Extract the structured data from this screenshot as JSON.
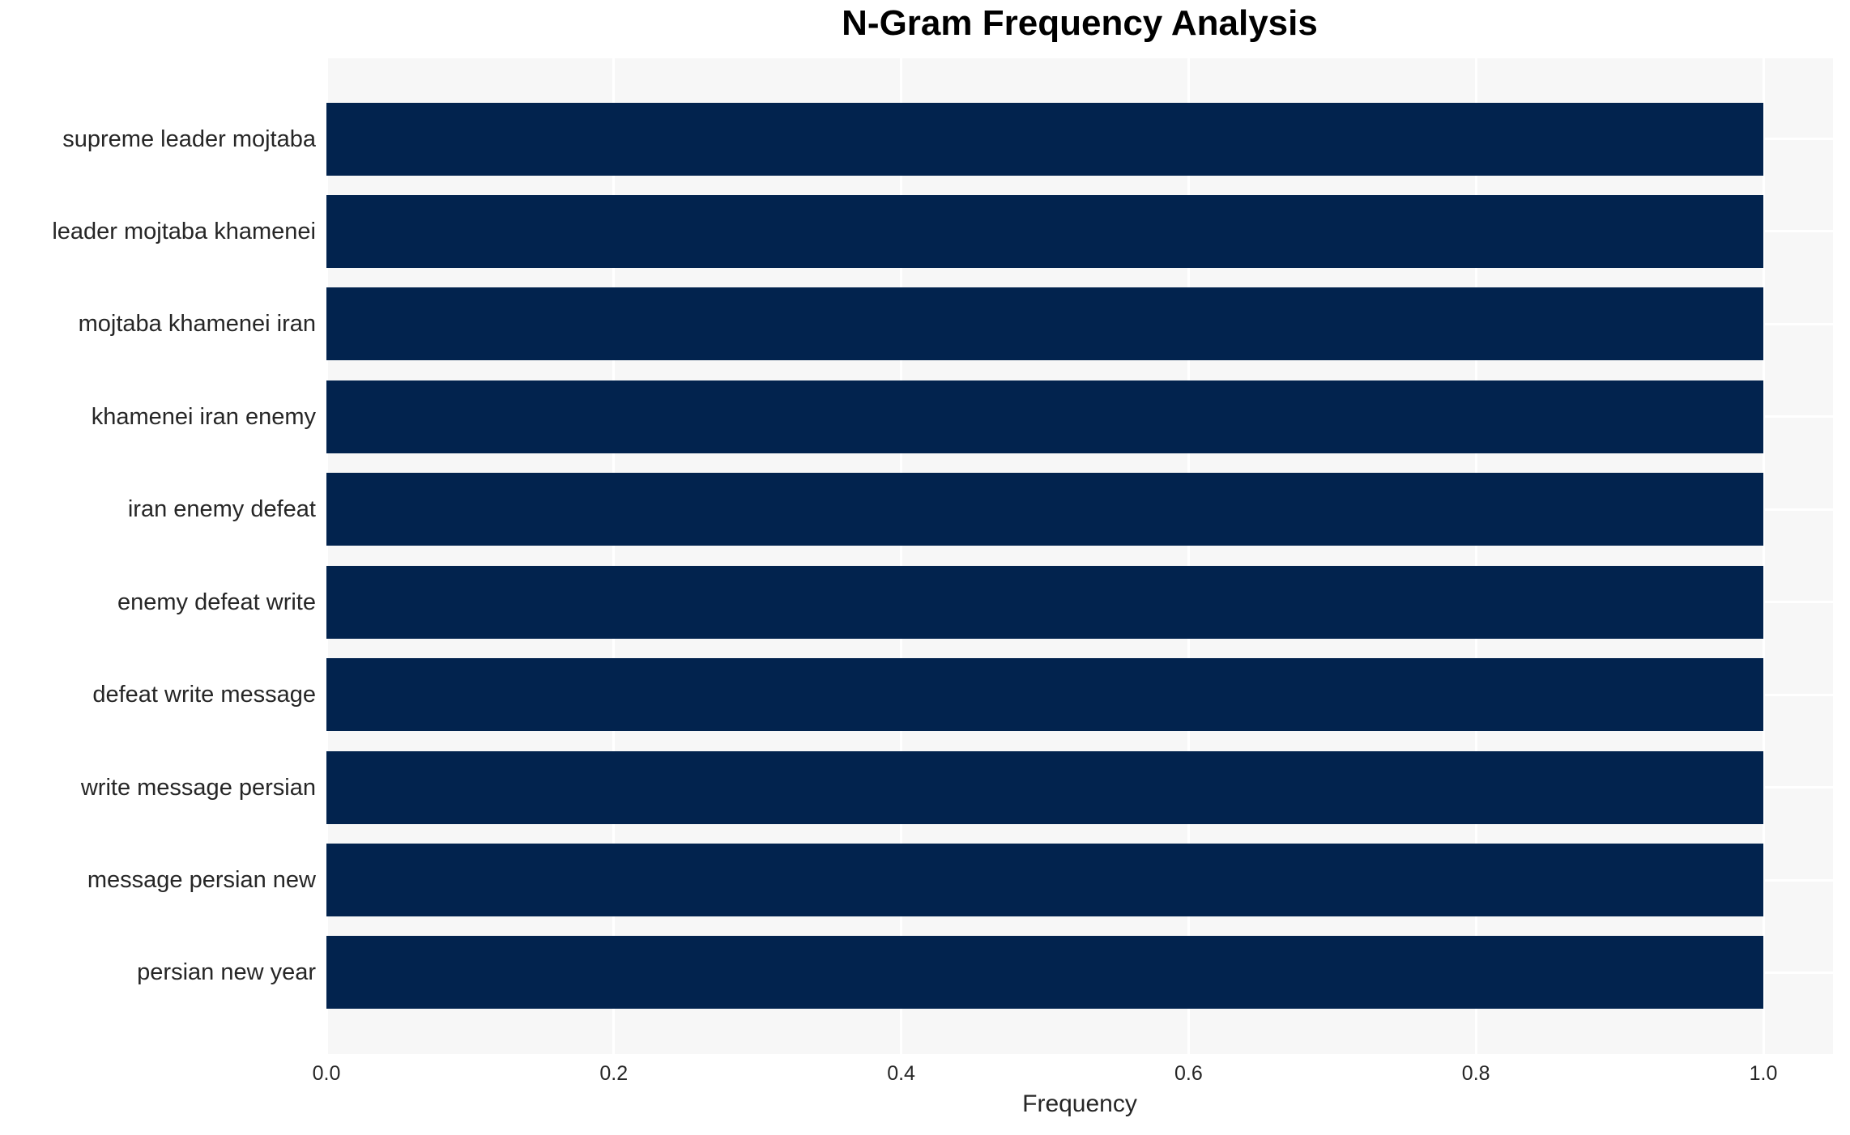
{
  "page": {
    "title": "N-Gram Frequency Analysis"
  },
  "chart_data": {
    "type": "bar",
    "orientation": "horizontal",
    "title": "N-Gram Frequency Analysis",
    "categories": [
      "supreme leader mojtaba",
      "leader mojtaba khamenei",
      "mojtaba khamenei iran",
      "khamenei iran enemy",
      "iran enemy defeat",
      "enemy defeat write",
      "defeat write message",
      "write message persian",
      "message persian new",
      "persian new year"
    ],
    "values": [
      1.0,
      1.0,
      1.0,
      1.0,
      1.0,
      1.0,
      1.0,
      1.0,
      1.0,
      1.0
    ],
    "xlabel": "Frequency",
    "ylabel": "",
    "xticks": [
      "0.0",
      "0.2",
      "0.4",
      "0.6",
      "0.8",
      "1.0"
    ],
    "xtick_values": [
      0.0,
      0.2,
      0.4,
      0.6,
      0.8,
      1.0
    ],
    "xlim": [
      0.0,
      1.05
    ],
    "grid": true,
    "legend": false,
    "colors": {
      "bar": "#02234E",
      "plot_bg": "#F7F7F7",
      "grid": "#FFFFFF",
      "tick_text": "#262626",
      "title_text": "#000000",
      "figure_bg": "#FFFFFF"
    }
  }
}
